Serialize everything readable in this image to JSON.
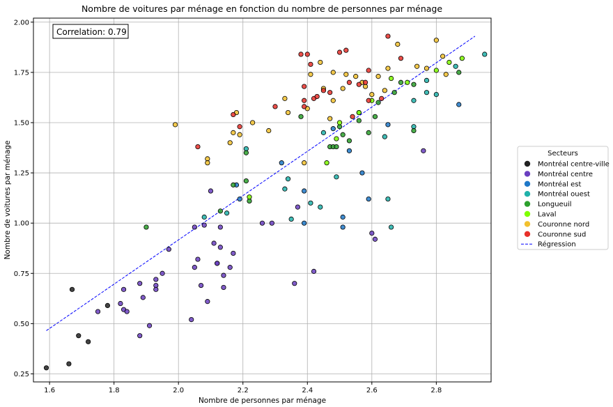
{
  "chart_data": {
    "type": "scatter",
    "title": "Nombre de voitures par ménage en fonction du nombre de personnes par ménage",
    "xlabel": "Nombre de personnes par ménage",
    "ylabel": "Nombre de voitures par ménage",
    "xlim": [
      1.55,
      2.97
    ],
    "ylim": [
      0.21,
      2.02
    ],
    "xticks": [
      "1.6",
      "1.8",
      "2.0",
      "2.2",
      "2.4",
      "2.6",
      "2.8"
    ],
    "yticks": [
      "0.25",
      "0.50",
      "0.75",
      "1.00",
      "1.25",
      "1.50",
      "1.75",
      "2.00"
    ],
    "grid": true,
    "annotation": "Correlation: 0.79",
    "legend": {
      "title": "Secteurs",
      "placement": "outside-right",
      "regression_label": "Régression"
    },
    "regression": {
      "x": [
        1.59,
        2.92
      ],
      "y": [
        0.465,
        1.93
      ],
      "color": "#0000ff"
    },
    "series": [
      {
        "name": "Montréal centre-ville",
        "color": "#222222",
        "points": [
          [
            1.59,
            0.28
          ],
          [
            1.66,
            0.3
          ],
          [
            1.67,
            0.67
          ],
          [
            1.69,
            0.44
          ],
          [
            1.72,
            0.41
          ],
          [
            1.78,
            0.59
          ]
        ]
      },
      {
        "name": "Montréal centre",
        "color": "#6a3fc0",
        "points": [
          [
            1.75,
            0.56
          ],
          [
            1.82,
            0.6
          ],
          [
            1.83,
            0.57
          ],
          [
            1.83,
            0.67
          ],
          [
            1.84,
            0.56
          ],
          [
            1.88,
            0.7
          ],
          [
            1.88,
            0.44
          ],
          [
            1.89,
            0.63
          ],
          [
            1.91,
            0.49
          ],
          [
            1.93,
            0.72
          ],
          [
            1.93,
            0.69
          ],
          [
            1.93,
            0.67
          ],
          [
            1.95,
            0.75
          ],
          [
            1.97,
            0.87
          ],
          [
            2.04,
            0.52
          ],
          [
            2.05,
            0.98
          ],
          [
            2.05,
            0.78
          ],
          [
            2.06,
            0.82
          ],
          [
            2.07,
            0.69
          ],
          [
            2.08,
            0.99
          ],
          [
            2.09,
            0.61
          ],
          [
            2.1,
            1.16
          ],
          [
            2.11,
            0.9
          ],
          [
            2.12,
            0.8
          ],
          [
            2.12,
            0.8
          ],
          [
            2.13,
            0.98
          ],
          [
            2.13,
            0.88
          ],
          [
            2.14,
            0.74
          ],
          [
            2.14,
            0.68
          ],
          [
            2.16,
            0.78
          ],
          [
            2.17,
            0.85
          ],
          [
            2.26,
            1.0
          ],
          [
            2.29,
            1.0
          ],
          [
            2.36,
            0.7
          ],
          [
            2.37,
            1.08
          ],
          [
            2.42,
            0.76
          ],
          [
            2.6,
            0.95
          ],
          [
            2.61,
            0.92
          ],
          [
            2.76,
            1.36
          ]
        ]
      },
      {
        "name": "Montréal est",
        "color": "#1f78c8",
        "points": [
          [
            2.18,
            1.19
          ],
          [
            2.19,
            1.12
          ],
          [
            2.32,
            1.3
          ],
          [
            2.39,
            1.16
          ],
          [
            2.39,
            1.0
          ],
          [
            2.48,
            1.47
          ],
          [
            2.51,
            1.03
          ],
          [
            2.51,
            0.98
          ],
          [
            2.53,
            1.36
          ],
          [
            2.57,
            1.25
          ],
          [
            2.59,
            1.12
          ],
          [
            2.65,
            1.49
          ],
          [
            2.87,
            1.59
          ]
        ]
      },
      {
        "name": "Montréal ouest",
        "color": "#20b2aa",
        "points": [
          [
            2.08,
            1.03
          ],
          [
            2.15,
            1.05
          ],
          [
            2.21,
            1.37
          ],
          [
            2.33,
            1.17
          ],
          [
            2.34,
            1.22
          ],
          [
            2.35,
            1.02
          ],
          [
            2.41,
            1.1
          ],
          [
            2.44,
            1.08
          ],
          [
            2.45,
            1.45
          ],
          [
            2.49,
            1.23
          ],
          [
            2.56,
            1.55
          ],
          [
            2.64,
            1.43
          ],
          [
            2.65,
            1.12
          ],
          [
            2.66,
            0.98
          ],
          [
            2.73,
            1.48
          ],
          [
            2.73,
            1.61
          ],
          [
            2.77,
            1.65
          ],
          [
            2.77,
            1.71
          ],
          [
            2.8,
            1.64
          ],
          [
            2.86,
            1.78
          ],
          [
            2.95,
            1.84
          ]
        ]
      },
      {
        "name": "Longueuil",
        "color": "#2ca02c",
        "points": [
          [
            1.9,
            0.98
          ],
          [
            2.13,
            1.06
          ],
          [
            2.17,
            1.19
          ],
          [
            2.21,
            1.35
          ],
          [
            2.21,
            1.21
          ],
          [
            2.22,
            1.11
          ],
          [
            2.38,
            1.53
          ],
          [
            2.47,
            1.38
          ],
          [
            2.48,
            1.38
          ],
          [
            2.49,
            1.38
          ],
          [
            2.5,
            1.48
          ],
          [
            2.51,
            1.44
          ],
          [
            2.53,
            1.41
          ],
          [
            2.56,
            1.51
          ],
          [
            2.59,
            1.45
          ],
          [
            2.61,
            1.53
          ],
          [
            2.62,
            1.6
          ],
          [
            2.67,
            1.65
          ],
          [
            2.69,
            1.7
          ],
          [
            2.73,
            1.69
          ],
          [
            2.73,
            1.46
          ],
          [
            2.87,
            1.75
          ]
        ]
      },
      {
        "name": "Laval",
        "color": "#7fff00",
        "points": [
          [
            2.22,
            1.13
          ],
          [
            2.46,
            1.3
          ],
          [
            2.49,
            1.42
          ],
          [
            2.5,
            1.5
          ],
          [
            2.56,
            1.55
          ],
          [
            2.6,
            1.61
          ],
          [
            2.66,
            1.72
          ],
          [
            2.71,
            1.7
          ],
          [
            2.8,
            1.76
          ],
          [
            2.84,
            1.8
          ],
          [
            2.88,
            1.82
          ]
        ]
      },
      {
        "name": "Couronne nord",
        "color": "#f2c12e",
        "points": [
          [
            1.99,
            1.49
          ],
          [
            2.09,
            1.32
          ],
          [
            2.09,
            1.3
          ],
          [
            2.16,
            1.4
          ],
          [
            2.17,
            1.45
          ],
          [
            2.18,
            1.55
          ],
          [
            2.19,
            1.44
          ],
          [
            2.23,
            1.5
          ],
          [
            2.28,
            1.46
          ],
          [
            2.33,
            1.62
          ],
          [
            2.34,
            1.55
          ],
          [
            2.39,
            1.3
          ],
          [
            2.4,
            1.57
          ],
          [
            2.41,
            1.74
          ],
          [
            2.44,
            1.8
          ],
          [
            2.45,
            1.67
          ],
          [
            2.47,
            1.52
          ],
          [
            2.48,
            1.61
          ],
          [
            2.48,
            1.75
          ],
          [
            2.51,
            1.67
          ],
          [
            2.52,
            1.74
          ],
          [
            2.55,
            1.73
          ],
          [
            2.57,
            1.7
          ],
          [
            2.58,
            1.68
          ],
          [
            2.6,
            1.64
          ],
          [
            2.62,
            1.73
          ],
          [
            2.64,
            1.66
          ],
          [
            2.65,
            1.77
          ],
          [
            2.68,
            1.89
          ],
          [
            2.74,
            1.78
          ],
          [
            2.77,
            1.77
          ],
          [
            2.8,
            1.91
          ],
          [
            2.82,
            1.83
          ],
          [
            2.83,
            1.74
          ]
        ]
      },
      {
        "name": "Couronne sud",
        "color": "#e8302a",
        "points": [
          [
            2.06,
            1.38
          ],
          [
            2.17,
            1.54
          ],
          [
            2.19,
            1.48
          ],
          [
            2.3,
            1.58
          ],
          [
            2.38,
            1.84
          ],
          [
            2.39,
            1.68
          ],
          [
            2.39,
            1.61
          ],
          [
            2.39,
            1.58
          ],
          [
            2.4,
            1.84
          ],
          [
            2.41,
            1.79
          ],
          [
            2.42,
            1.62
          ],
          [
            2.43,
            1.63
          ],
          [
            2.45,
            1.66
          ],
          [
            2.47,
            1.65
          ],
          [
            2.5,
            1.85
          ],
          [
            2.52,
            1.86
          ],
          [
            2.53,
            1.7
          ],
          [
            2.54,
            1.53
          ],
          [
            2.56,
            1.69
          ],
          [
            2.58,
            1.7
          ],
          [
            2.59,
            1.61
          ],
          [
            2.59,
            1.76
          ],
          [
            2.63,
            1.62
          ],
          [
            2.65,
            1.93
          ],
          [
            2.69,
            1.82
          ]
        ]
      }
    ]
  }
}
